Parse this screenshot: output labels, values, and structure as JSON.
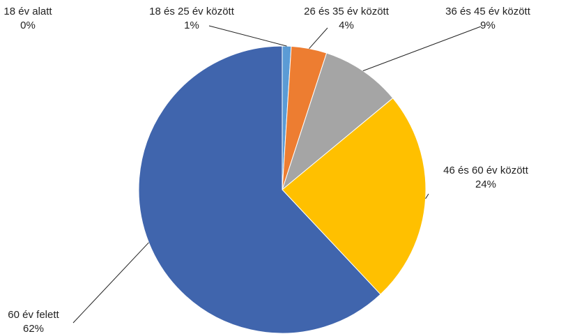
{
  "chart_data": {
    "type": "pie",
    "categories": [
      "18 év alatt",
      "18 és 25 év között",
      "26 és 35 év között",
      "36 és 45 év között",
      "46 és 60 év között",
      "60 év felett"
    ],
    "values": [
      0,
      1,
      4,
      9,
      24,
      62
    ],
    "value_labels": [
      "0%",
      "1%",
      "4%",
      "9%",
      "24%",
      "62%"
    ],
    "colors": [
      "#264478",
      "#5b9bd5",
      "#ed7d31",
      "#a5a5a5",
      "#ffc000",
      "#4065ad"
    ]
  }
}
